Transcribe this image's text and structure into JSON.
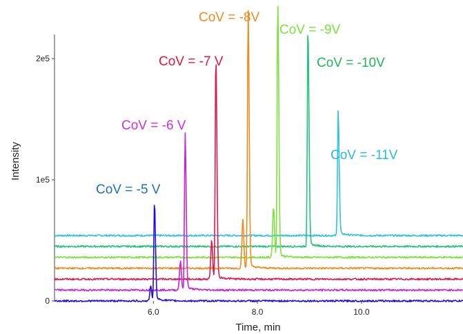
{
  "chart_data": {
    "type": "line",
    "title": "",
    "xlabel": "Time, min",
    "ylabel": "Intensity",
    "xlim": [
      4.1,
      11.95
    ],
    "ylim": [
      0,
      220000.0
    ],
    "xticks": [
      6.0,
      8.0,
      10.0
    ],
    "xtick_labels": [
      "6.0",
      "8.0",
      "10.0"
    ],
    "yticks": [
      0,
      100000,
      200000
    ],
    "ytick_labels": [
      "0",
      "1e5",
      "2e5"
    ],
    "grid": false,
    "legend": "none",
    "series": [
      {
        "name": "CoV = -5 V",
        "color": "#1f10d8",
        "baseline": 0,
        "peak_time": 6.02,
        "peak_height": 80000,
        "shoulder_time": 5.95,
        "shoulder_height": 12000
      },
      {
        "name": "CoV = -6 V",
        "color": "#c722d6",
        "baseline": 9000,
        "peak_time": 6.61,
        "peak_height": 128000,
        "shoulder_time": 6.52,
        "shoulder_height": 24000
      },
      {
        "name": "CoV = -7 V",
        "color": "#e0174f",
        "baseline": 18000,
        "peak_time": 7.2,
        "peak_height": 183000,
        "shoulder_time": 7.12,
        "shoulder_height": 32000
      },
      {
        "name": "CoV = -8V",
        "color": "#f08a1c",
        "baseline": 27000,
        "peak_time": 7.82,
        "peak_height": 213000,
        "shoulder_time": 7.72,
        "shoulder_height": 40000
      },
      {
        "name": "CoV = -9V",
        "color": "#7be23a",
        "baseline": 36000,
        "peak_time": 8.39,
        "peak_height": 211000,
        "shoulder_time": 8.31,
        "shoulder_height": 42000
      },
      {
        "name": "CoV = -10V",
        "color": "#21c47a",
        "baseline": 45000,
        "peak_time": 8.97,
        "peak_height": 180000
      },
      {
        "name": "CoV = -11V",
        "color": "#2cc2e3",
        "baseline": 54000,
        "peak_time": 9.55,
        "peak_height": 101000
      }
    ]
  },
  "labels": {
    "l5": {
      "text": "CoV = -5 V",
      "color": "#1f6fb4"
    },
    "l6": {
      "text": "CoV = -6 V",
      "color": "#d02fd8"
    },
    "l7": {
      "text": "CoV = -7 V",
      "color": "#e0173a"
    },
    "l8": {
      "text": "CoV = -8V",
      "color": "#f08a1c"
    },
    "l9": {
      "text": "CoV = -9V",
      "color": "#7be23a"
    },
    "l10": {
      "text": "CoV = -10V",
      "color": "#21b55a"
    },
    "l11": {
      "text": "CoV = -11V",
      "color": "#2cb7e0"
    }
  }
}
